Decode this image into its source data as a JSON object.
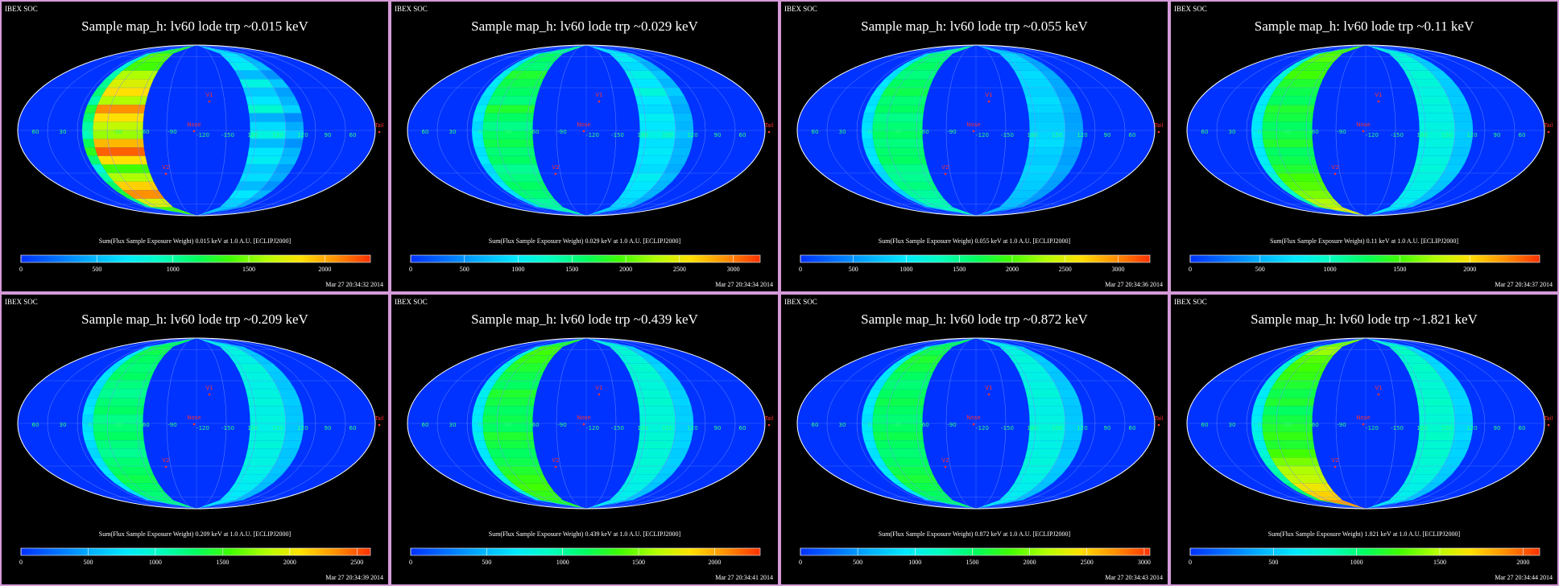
{
  "colors": {
    "background": "#000000",
    "panel_border": "#d59ad8",
    "map_base": "#0033ff",
    "text": "#ffffff",
    "marker": "#ff3030",
    "colormap": [
      "#0030ff",
      "#0070ff",
      "#00b0ff",
      "#00e8ff",
      "#00ffc0",
      "#00ff60",
      "#40ff00",
      "#b0ff00",
      "#ffe000",
      "#ff9000",
      "#ff3000"
    ]
  },
  "panels": [
    {
      "soc": "IBEX SOC",
      "title": "Sample map_h: lv60 lode trp ~0.015 keV",
      "caption": "Sum(Flux Sample Exposure Weight)  0.015 keV at 1.0 A.U. [ECLIPJ2000]",
      "timestamp": "Mar 27 20:34:32 2014",
      "colorbar": {
        "min": 0,
        "max": 2300,
        "ticks": [
          "0",
          "500",
          "1000",
          "1500",
          "2000"
        ]
      },
      "left_band": [
        0.55,
        0.62,
        0.6,
        0.7,
        0.75,
        0.8,
        0.7,
        0.9,
        0.8,
        0.72,
        0.68,
        0.85,
        0.95,
        0.8,
        0.6,
        0.7,
        0.82,
        0.9,
        0.75,
        0.6
      ],
      "right_band": [
        0.28,
        0.3,
        0.32,
        0.22,
        0.35,
        0.25,
        0.3,
        0.38,
        0.2,
        0.28,
        0.35,
        0.22,
        0.3,
        0.32,
        0.25,
        0.28,
        0.22,
        0.3,
        0.26,
        0.24
      ]
    },
    {
      "soc": "IBEX SOC",
      "title": "Sample map_h: lv60 lode trp ~0.029 keV",
      "caption": "Sum(Flux Sample Exposure Weight)  0.029 keV at 1.0 A.U. [ECLIPJ2000]",
      "timestamp": "Mar 27 20:34:34 2014",
      "colorbar": {
        "min": 0,
        "max": 3250,
        "ticks": [
          "0",
          "500",
          "1000",
          "1500",
          "2000",
          "2500",
          "3000"
        ]
      },
      "left_band": [
        0.45,
        0.5,
        0.48,
        0.55,
        0.52,
        0.5,
        0.47,
        0.55,
        0.5,
        0.46,
        0.5,
        0.52,
        0.48,
        0.5,
        0.45,
        0.47,
        0.5,
        0.48,
        0.44,
        0.42
      ],
      "right_band": [
        0.3,
        0.32,
        0.28,
        0.34,
        0.3,
        0.36,
        0.3,
        0.28,
        0.32,
        0.3,
        0.34,
        0.29,
        0.31,
        0.3,
        0.28,
        0.32,
        0.3,
        0.29,
        0.27,
        0.26
      ]
    },
    {
      "soc": "IBEX SOC",
      "title": "Sample map_h: lv60 lode trp ~0.055 keV",
      "caption": "Sum(Flux Sample Exposure Weight)  0.055 keV at 1.0 A.U. [ECLIPJ2000]",
      "timestamp": "Mar 27 20:34:36 2014",
      "colorbar": {
        "min": 0,
        "max": 3300,
        "ticks": [
          "0",
          "500",
          "1000",
          "1500",
          "2000",
          "2500",
          "3000"
        ]
      },
      "left_band": [
        0.45,
        0.48,
        0.5,
        0.47,
        0.5,
        0.52,
        0.48,
        0.5,
        0.46,
        0.48,
        0.5,
        0.47,
        0.49,
        0.5,
        0.46,
        0.45,
        0.47,
        0.44,
        0.42,
        0.4
      ],
      "right_band": [
        0.25,
        0.27,
        0.26,
        0.28,
        0.27,
        0.26,
        0.28,
        0.27,
        0.25,
        0.26,
        0.27,
        0.28,
        0.26,
        0.25,
        0.27,
        0.26,
        0.25,
        0.24,
        0.23,
        0.22
      ]
    },
    {
      "soc": "IBEX SOC",
      "title": "Sample map_h: lv60 lode trp ~0.11 keV",
      "caption": "Sum(Flux Sample Exposure Weight)  0.11 keV at 1.0 A.U. [ECLIPJ2000]",
      "timestamp": "Mar 27 20:34:37 2014",
      "colorbar": {
        "min": 0,
        "max": 2500,
        "ticks": [
          "0",
          "500",
          "1000",
          "1500",
          "2000"
        ]
      },
      "left_band": [
        0.6,
        0.62,
        0.58,
        0.6,
        0.55,
        0.52,
        0.5,
        0.55,
        0.53,
        0.5,
        0.52,
        0.55,
        0.5,
        0.52,
        0.55,
        0.6,
        0.62,
        0.65,
        0.7,
        0.75
      ],
      "right_band": [
        0.35,
        0.36,
        0.35,
        0.37,
        0.36,
        0.35,
        0.36,
        0.35,
        0.34,
        0.35,
        0.36,
        0.35,
        0.34,
        0.35,
        0.36,
        0.35,
        0.34,
        0.33,
        0.32,
        0.3
      ]
    },
    {
      "soc": "IBEX SOC",
      "title": "Sample map_h: lv60 lode trp ~0.209 keV",
      "caption": "Sum(Flux Sample Exposure Weight)  0.209 keV at 1.0 A.U. [ECLIPJ2000]",
      "timestamp": "Mar 27 20:34:39 2014",
      "colorbar": {
        "min": 0,
        "max": 2600,
        "ticks": [
          "0",
          "500",
          "1000",
          "1500",
          "2000",
          "2500"
        ]
      },
      "left_band": [
        0.5,
        0.52,
        0.5,
        0.48,
        0.5,
        0.47,
        0.45,
        0.48,
        0.5,
        0.46,
        0.48,
        0.5,
        0.47,
        0.45,
        0.48,
        0.5,
        0.52,
        0.5,
        0.48,
        0.46
      ],
      "right_band": [
        0.34,
        0.35,
        0.34,
        0.36,
        0.35,
        0.34,
        0.35,
        0.36,
        0.34,
        0.35,
        0.34,
        0.35,
        0.36,
        0.34,
        0.35,
        0.34,
        0.33,
        0.32,
        0.31,
        0.3
      ]
    },
    {
      "soc": "IBEX SOC",
      "title": "Sample map_h: lv60 lode trp ~0.439 keV",
      "caption": "Sum(Flux Sample Exposure Weight)  0.439 keV at 1.0 A.U. [ECLIPJ2000]",
      "timestamp": "Mar 27 20:34:41 2014",
      "colorbar": {
        "min": 0,
        "max": 2300,
        "ticks": [
          "0",
          "500",
          "1000",
          "1500",
          "2000"
        ]
      },
      "left_band": [
        0.55,
        0.6,
        0.58,
        0.55,
        0.52,
        0.5,
        0.55,
        0.53,
        0.5,
        0.52,
        0.5,
        0.55,
        0.53,
        0.5,
        0.52,
        0.55,
        0.58,
        0.6,
        0.58,
        0.55
      ],
      "right_band": [
        0.36,
        0.37,
        0.36,
        0.38,
        0.37,
        0.36,
        0.37,
        0.38,
        0.36,
        0.37,
        0.36,
        0.37,
        0.38,
        0.36,
        0.37,
        0.36,
        0.35,
        0.34,
        0.33,
        0.32
      ]
    },
    {
      "soc": "IBEX SOC",
      "title": "Sample map_h: lv60 lode trp ~0.872 keV",
      "caption": "Sum(Flux Sample Exposure Weight)  0.872 keV at 1.0 A.U. [ECLIPJ2000]",
      "timestamp": "Mar 27 20:34:43 2014",
      "colorbar": {
        "min": 0,
        "max": 3050,
        "ticks": [
          "0",
          "500",
          "1000",
          "1500",
          "2000",
          "2500",
          "3000"
        ]
      },
      "left_band": [
        0.5,
        0.52,
        0.55,
        0.53,
        0.5,
        0.48,
        0.5,
        0.52,
        0.5,
        0.48,
        0.5,
        0.52,
        0.5,
        0.48,
        0.5,
        0.52,
        0.54,
        0.52,
        0.5,
        0.48
      ],
      "right_band": [
        0.34,
        0.35,
        0.36,
        0.35,
        0.34,
        0.35,
        0.36,
        0.35,
        0.34,
        0.35,
        0.36,
        0.35,
        0.34,
        0.35,
        0.36,
        0.35,
        0.34,
        0.33,
        0.32,
        0.31
      ]
    },
    {
      "soc": "IBEX SOC",
      "title": "Sample map_h: lv60 lode trp ~1.821 keV",
      "caption": "Sum(Flux Sample Exposure Weight)  1.821 keV at 1.0 A.U. [ECLIPJ2000]",
      "timestamp": "Mar 27 20:34:44 2014",
      "colorbar": {
        "min": 0,
        "max": 2100,
        "ticks": [
          "0",
          "500",
          "1000",
          "1500",
          "2000"
        ]
      },
      "left_band": [
        0.65,
        0.68,
        0.62,
        0.6,
        0.58,
        0.55,
        0.52,
        0.55,
        0.5,
        0.53,
        0.55,
        0.58,
        0.55,
        0.6,
        0.65,
        0.7,
        0.72,
        0.78,
        0.82,
        0.88
      ],
      "right_band": [
        0.38,
        0.4,
        0.38,
        0.39,
        0.38,
        0.37,
        0.38,
        0.39,
        0.38,
        0.37,
        0.38,
        0.39,
        0.37,
        0.38,
        0.37,
        0.36,
        0.35,
        0.34,
        0.33,
        0.32
      ]
    }
  ],
  "map_labels": {
    "lon_left": [
      "60",
      "30",
      "0",
      "-30",
      "-60",
      "-90"
    ],
    "lon_right": [
      "-120",
      "-150",
      "180",
      "150",
      "120",
      "90",
      "60"
    ],
    "points": {
      "v1": "V1",
      "v2": "V2",
      "nose": "Nose",
      "tail": "Tail"
    }
  },
  "chart_data": {
    "type": "heatmap",
    "projection": "Mollweide sky map (all-sky)",
    "maps": [
      {
        "title": "Sample map_h: lv60 lode trp ~0.015 keV",
        "energy_keV": 0.015,
        "colorbar_range": [
          0,
          2300
        ]
      },
      {
        "title": "Sample map_h: lv60 lode trp ~0.029 keV",
        "energy_keV": 0.029,
        "colorbar_range": [
          0,
          3250
        ]
      },
      {
        "title": "Sample map_h: lv60 lode trp ~0.055 keV",
        "energy_keV": 0.055,
        "colorbar_range": [
          0,
          3300
        ]
      },
      {
        "title": "Sample map_h: lv60 lode trp ~0.11 keV",
        "energy_keV": 0.11,
        "colorbar_range": [
          0,
          2500
        ]
      },
      {
        "title": "Sample map_h: lv60 lode trp ~0.209 keV",
        "energy_keV": 0.209,
        "colorbar_range": [
          0,
          2600
        ]
      },
      {
        "title": "Sample map_h: lv60 lode trp ~0.439 keV",
        "energy_keV": 0.439,
        "colorbar_range": [
          0,
          2300
        ]
      },
      {
        "title": "Sample map_h: lv60 lode trp ~0.872 keV",
        "energy_keV": 0.872,
        "colorbar_range": [
          0,
          3050
        ]
      },
      {
        "title": "Sample map_h: lv60 lode trp ~1.821 keV",
        "energy_keV": 1.821,
        "colorbar_range": [
          0,
          2100
        ]
      }
    ],
    "grid": true,
    "legend": "bottom colorbar"
  }
}
